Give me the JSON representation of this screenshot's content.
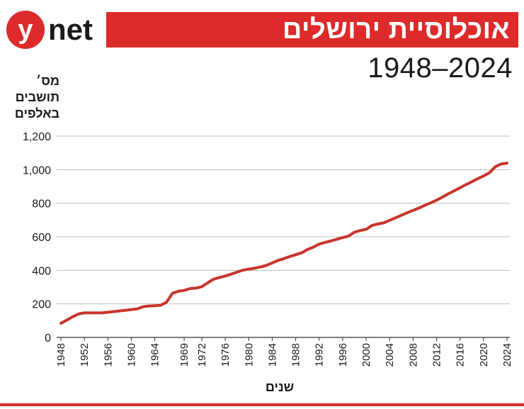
{
  "brand": {
    "logo_letter": "y",
    "logo_word": "net"
  },
  "header": {
    "title": "אוכלוסיית ירושלים",
    "subtitle": "1948–2024"
  },
  "colors": {
    "accent": "#dd2a2a",
    "line": "#c7352b",
    "grid": "#bdbdbd",
    "text": "#1a1a1a"
  },
  "chart_data": {
    "type": "line",
    "title": "אוכלוסיית ירושלים",
    "subtitle": "1948–2024",
    "ylabel_lines": [
      "מס׳",
      "תושבים",
      "באלפים"
    ],
    "xlabel": "שנים",
    "ylim": [
      0,
      1200
    ],
    "yticks": [
      0,
      200,
      400,
      600,
      800,
      1000,
      1200
    ],
    "ytick_labels": [
      "0",
      "200",
      "400",
      "600",
      "800",
      "1,000",
      "1,200"
    ],
    "xlim": [
      1948,
      2024
    ],
    "xticks": [
      1948,
      1952,
      1956,
      1960,
      1964,
      1969,
      1972,
      1976,
      1980,
      1984,
      1988,
      1992,
      1996,
      2000,
      2004,
      2008,
      2012,
      2016,
      2020,
      2024
    ],
    "grid": true,
    "legend": "none",
    "series": [
      {
        "x": [
          1948,
          1949,
          1950,
          1951,
          1952,
          1953,
          1954,
          1955,
          1956,
          1957,
          1958,
          1959,
          1960,
          1961,
          1962,
          1963,
          1964,
          1965,
          1966,
          1967,
          1968,
          1969,
          1970,
          1971,
          1972,
          1973,
          1974,
          1975,
          1976,
          1977,
          1978,
          1979,
          1980,
          1981,
          1982,
          1983,
          1984,
          1985,
          1986,
          1987,
          1988,
          1989,
          1990,
          1991,
          1992,
          1993,
          1994,
          1995,
          1996,
          1997,
          1998,
          1999,
          2000,
          2001,
          2002,
          2003,
          2004,
          2005,
          2006,
          2007,
          2008,
          2009,
          2010,
          2011,
          2012,
          2013,
          2014,
          2015,
          2016,
          2017,
          2018,
          2019,
          2020,
          2021,
          2022,
          2023,
          2024
        ],
        "values": [
          84,
          103,
          123,
          140,
          146,
          146,
          146,
          146,
          150,
          154,
          158,
          162,
          166,
          170,
          183,
          187,
          189,
          192,
          210,
          263,
          275,
          280,
          291,
          294,
          302,
          325,
          347,
          357,
          366,
          377,
          389,
          401,
          407,
          413,
          420,
          429,
          444,
          459,
          470,
          482,
          493,
          504,
          524,
          538,
          556,
          566,
          575,
          585,
          595,
          604,
          627,
          637,
          645,
          667,
          676,
          683,
          698,
          713,
          728,
          743,
          757,
          771,
          787,
          802,
          818,
          836,
          856,
          874,
          892,
          911,
          928,
          946,
          962,
          981,
          1017,
          1034,
          1039
        ]
      }
    ]
  }
}
